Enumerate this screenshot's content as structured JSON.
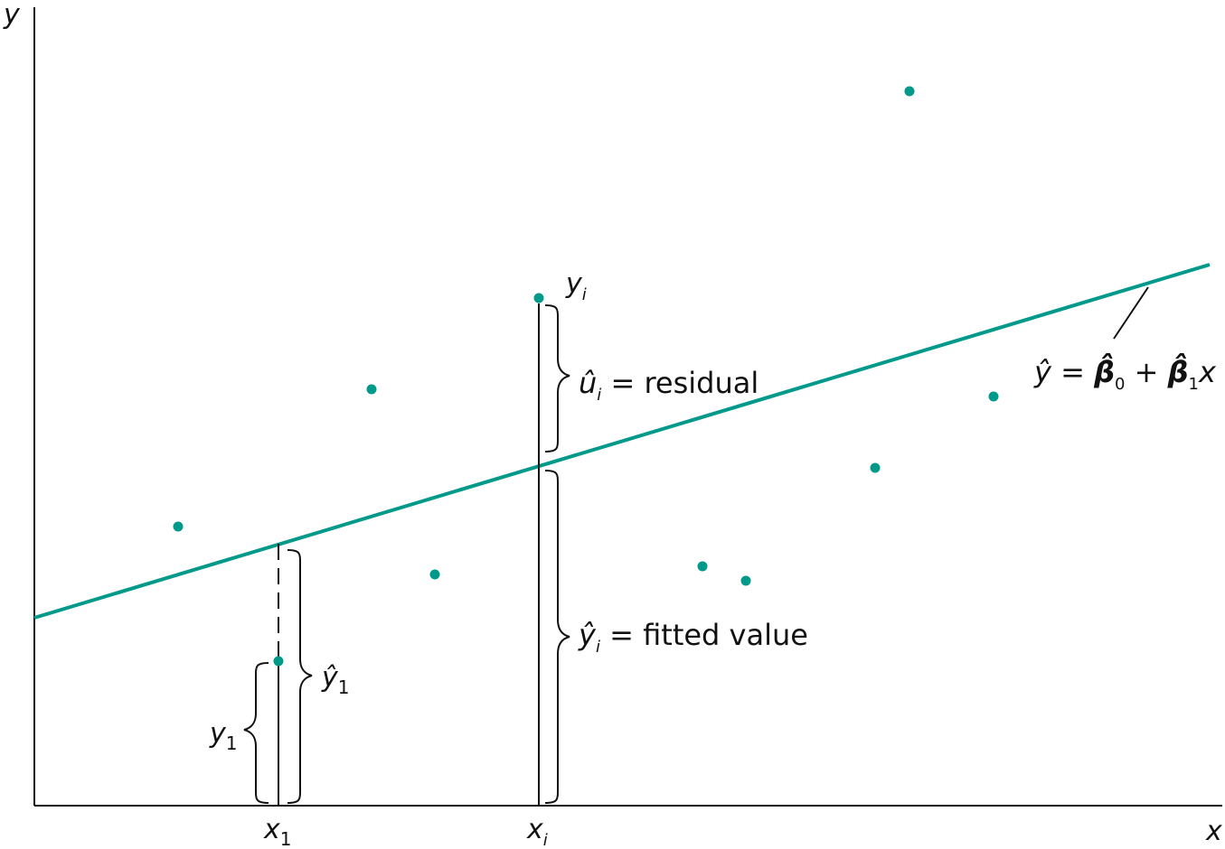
{
  "colors": {
    "accent": "#00998a",
    "ink": "#111111"
  },
  "axes": {
    "y_label": "y",
    "x_label": "x",
    "x1_tick": {
      "base": "x",
      "sub": "1"
    },
    "xi_tick": {
      "base": "x",
      "sub": "i"
    }
  },
  "labels": {
    "yi": {
      "base": "y",
      "sub": "i"
    },
    "residual": {
      "base": "û",
      "sub": "i",
      "text": " = residual"
    },
    "fitted": {
      "base": "ŷ",
      "sub": "i",
      "text": " = fitted value"
    },
    "y1": {
      "base": "y",
      "sub": "1"
    },
    "yhat1": {
      "base": "ŷ",
      "sub": "1"
    },
    "regression_line": {
      "lhs": "ŷ",
      "eq": " = ",
      "beta": "β̂",
      "sub0": "0",
      "plus": " + ",
      "sub1": "1",
      "x": "x"
    }
  }
}
